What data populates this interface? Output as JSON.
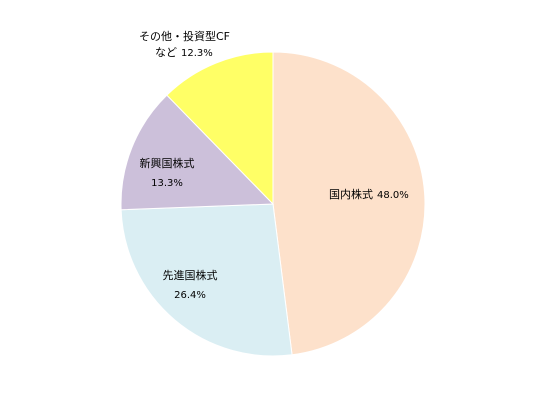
{
  "chart_data": {
    "type": "pie",
    "title": "",
    "start_angle_deg": 0,
    "direction": "clockwise",
    "slices": [
      {
        "name": "国内株式",
        "value": 48.0,
        "pct_label": "48.0%",
        "color": "#FDE1CB"
      },
      {
        "name": "先進国株式",
        "value": 26.4,
        "pct_label": "26.4%",
        "color": "#DAEEF3"
      },
      {
        "name": "新興国株式",
        "value": 13.3,
        "pct_label": "13.3%",
        "color": "#CCC0DA"
      },
      {
        "name_line1": "その他・投資型CF",
        "name_line2": "など",
        "value": 12.3,
        "pct_label": "12.3%",
        "color": "#FFFF66"
      }
    ],
    "legend": "none",
    "slice_border_color": "#ffffff"
  }
}
